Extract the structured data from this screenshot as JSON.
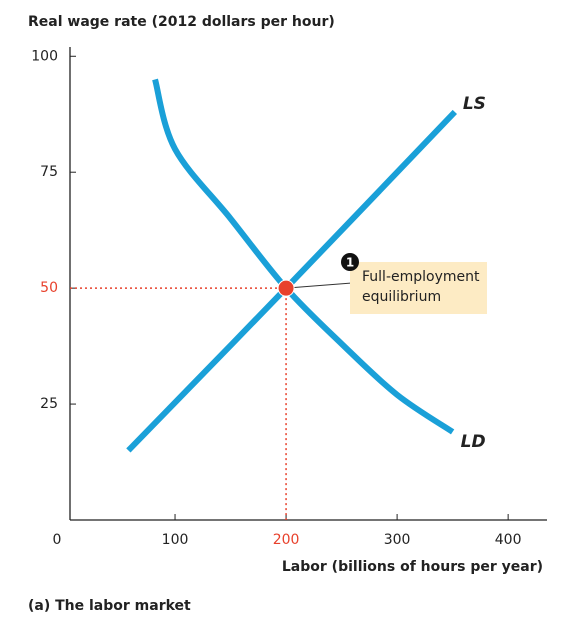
{
  "chart_data": {
    "type": "line",
    "y_label": "Real wage rate (2012 dollars per hour)",
    "x_label": "Labor (billions of hours per year)",
    "caption": "(a) The labor market",
    "xlim": [
      0,
      435
    ],
    "ylim": [
      0,
      102
    ],
    "xticks": [
      0,
      100,
      200,
      300,
      400
    ],
    "yticks": [
      25,
      50,
      75,
      100
    ],
    "series": [
      {
        "name": "LS",
        "color": "#1aa0d8",
        "x": [
          58,
          200,
          352
        ],
        "values": [
          15,
          50,
          88
        ]
      },
      {
        "name": "LD",
        "color": "#1aa0d8",
        "x": [
          82,
          100,
          150,
          200,
          250,
          300,
          350
        ],
        "values": [
          95,
          80,
          65,
          50,
          38,
          27,
          19
        ]
      }
    ],
    "equilibrium": {
      "x": 200,
      "y": 50,
      "color": "#e8412c",
      "number": "1",
      "label": "Full-employment equilibrium"
    }
  }
}
